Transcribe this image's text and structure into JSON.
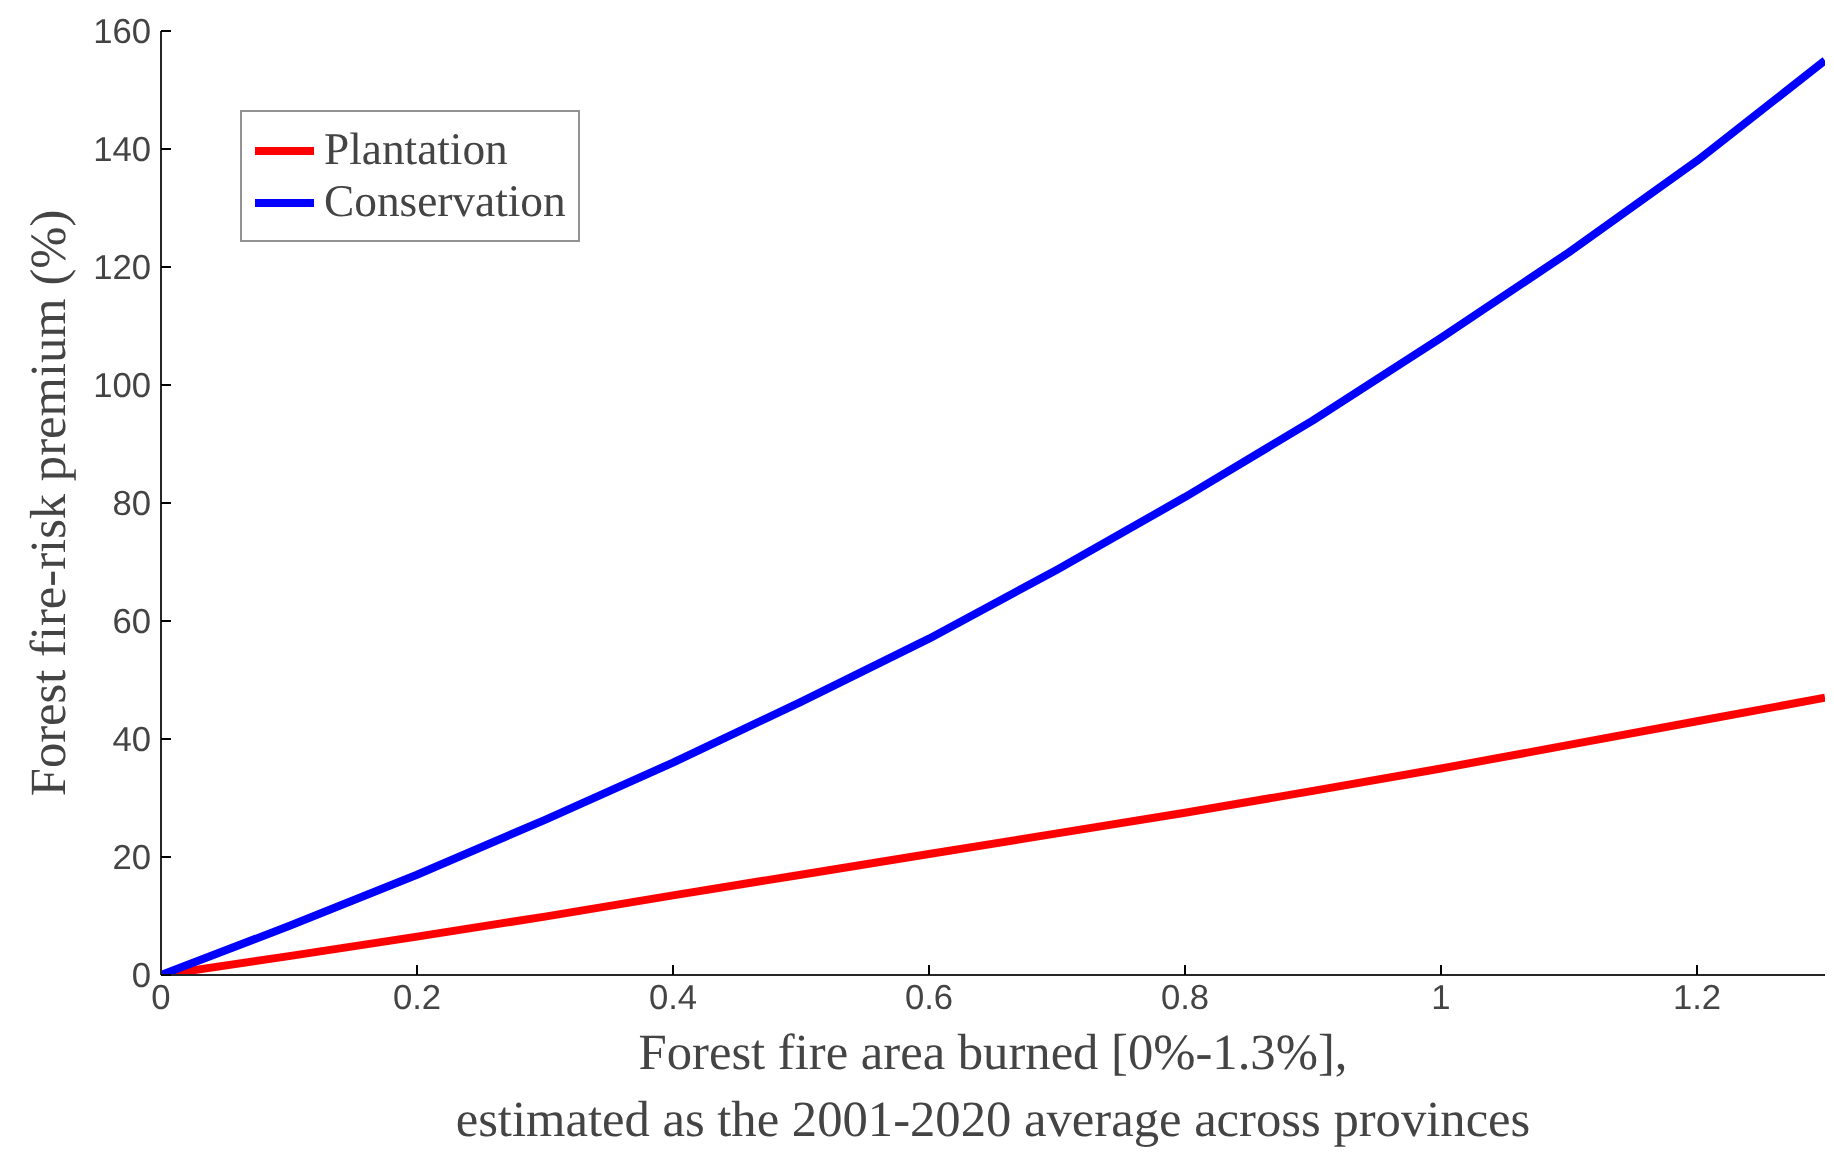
{
  "chart_data": {
    "type": "line",
    "xlabel": "Forest fire area burned [0%-1.3%],\nestimated as the 2001-2020 average across provinces",
    "ylabel": "Forest fire-risk premium (%)",
    "x": [
      0,
      0.1,
      0.2,
      0.3,
      0.4,
      0.5,
      0.6,
      0.7,
      0.8,
      0.9,
      1.0,
      1.1,
      1.2,
      1.3
    ],
    "series": [
      {
        "name": "Plantation",
        "color": "#ff0000",
        "values": [
          0,
          3.2,
          6.5,
          9.9,
          13.5,
          17,
          20.5,
          24,
          27.5,
          31.2,
          35,
          39,
          43,
          47
        ]
      },
      {
        "name": "Conservation",
        "color": "#0000ff",
        "values": [
          0,
          8.3,
          17,
          26.3,
          36,
          46.3,
          57,
          68.7,
          81,
          94,
          108,
          122.5,
          138,
          155
        ]
      }
    ],
    "xlim": [
      0,
      1.3
    ],
    "ylim": [
      0,
      160
    ],
    "xticks": [
      0,
      0.2,
      0.4,
      0.6,
      0.8,
      1,
      1.2
    ],
    "yticks": [
      0,
      20,
      40,
      60,
      80,
      100,
      120,
      140,
      160
    ],
    "grid": false,
    "legend": "top left",
    "line_style": "solid",
    "marker": "none"
  }
}
